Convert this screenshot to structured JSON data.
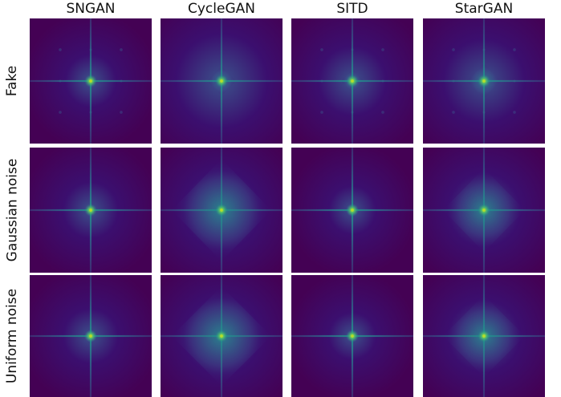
{
  "columns": [
    "SNGAN",
    "CycleGAN",
    "SITD",
    "StarGAN"
  ],
  "rows": [
    "Fake",
    "Gaussian noise",
    "Uniform noise"
  ],
  "colors": {
    "background": "#440154",
    "dark": "#3b0f6f",
    "mid": "#3b528b",
    "bright": "#21918c",
    "highlight": "#5ec962",
    "peak": "#b5de2b"
  },
  "spectra": [
    [
      {
        "model": "SNGAN",
        "row": "Fake",
        "glow": 0.25,
        "diamond": 0.0,
        "artifacts": true
      },
      {
        "model": "CycleGAN",
        "row": "Fake",
        "glow": 0.7,
        "diamond": 0.25,
        "artifacts": false
      },
      {
        "model": "SITD",
        "row": "Fake",
        "glow": 0.45,
        "diamond": 0.2,
        "artifacts": true
      },
      {
        "model": "StarGAN",
        "row": "Fake",
        "glow": 0.6,
        "diamond": 0.3,
        "artifacts": true
      }
    ],
    [
      {
        "model": "SNGAN",
        "row": "Gaussian noise",
        "glow": 0.3,
        "diamond": 0.1,
        "artifacts": false
      },
      {
        "model": "CycleGAN",
        "row": "Gaussian noise",
        "glow": 0.55,
        "diamond": 0.85,
        "artifacts": false
      },
      {
        "model": "SITD",
        "row": "Gaussian noise",
        "glow": 0.2,
        "diamond": 0.15,
        "artifacts": false
      },
      {
        "model": "StarGAN",
        "row": "Gaussian noise",
        "glow": 0.5,
        "diamond": 0.7,
        "artifacts": false
      }
    ],
    [
      {
        "model": "SNGAN",
        "row": "Uniform noise",
        "glow": 0.3,
        "diamond": 0.15,
        "artifacts": false
      },
      {
        "model": "CycleGAN",
        "row": "Uniform noise",
        "glow": 0.55,
        "diamond": 0.85,
        "artifacts": false
      },
      {
        "model": "SITD",
        "row": "Uniform noise",
        "glow": 0.2,
        "diamond": 0.15,
        "artifacts": false
      },
      {
        "model": "StarGAN",
        "row": "Uniform noise",
        "glow": 0.5,
        "diamond": 0.7,
        "artifacts": false
      }
    ]
  ]
}
